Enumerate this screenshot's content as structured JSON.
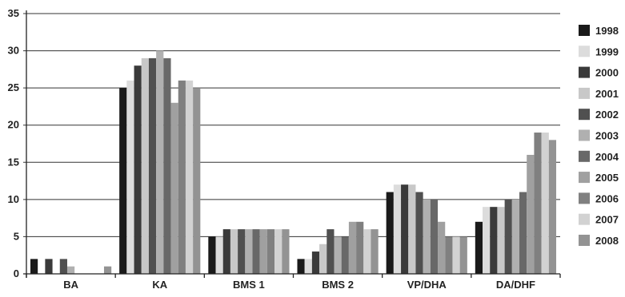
{
  "chart_data": {
    "type": "bar",
    "title": "",
    "xlabel": "",
    "ylabel": "",
    "ylim": [
      0,
      35
    ],
    "yticks": [
      0,
      5,
      10,
      15,
      20,
      25,
      30,
      35
    ],
    "grid": "horizontal",
    "legend_position": "right",
    "categories": [
      "BA",
      "KA",
      "BMS 1",
      "BMS 2",
      "VP/DHA",
      "DA/DHF"
    ],
    "series": [
      {
        "name": "1998",
        "color": "#1a1a1a",
        "values": [
          2,
          25,
          5,
          2,
          11,
          7
        ]
      },
      {
        "name": "1999",
        "color": "#dcdcdc",
        "values": [
          0,
          26,
          5,
          2,
          12,
          9
        ]
      },
      {
        "name": "2000",
        "color": "#3a3a3a",
        "values": [
          2,
          28,
          6,
          3,
          12,
          9
        ]
      },
      {
        "name": "2001",
        "color": "#c8c8c8",
        "values": [
          0,
          29,
          6,
          4,
          12,
          9
        ]
      },
      {
        "name": "2002",
        "color": "#505050",
        "values": [
          2,
          29,
          6,
          6,
          11,
          10
        ]
      },
      {
        "name": "2003",
        "color": "#b0b0b0",
        "values": [
          1,
          30,
          6,
          5,
          10,
          10
        ]
      },
      {
        "name": "2004",
        "color": "#686868",
        "values": [
          0,
          29,
          6,
          5,
          10,
          11
        ]
      },
      {
        "name": "2005",
        "color": "#a0a0a0",
        "values": [
          0,
          23,
          6,
          7,
          7,
          16
        ]
      },
      {
        "name": "2006",
        "color": "#808080",
        "values": [
          0,
          26,
          6,
          7,
          5,
          19
        ]
      },
      {
        "name": "2007",
        "color": "#d2d2d2",
        "values": [
          0,
          26,
          6,
          6,
          5,
          19
        ]
      },
      {
        "name": "2008",
        "color": "#939393",
        "values": [
          1,
          25,
          6,
          6,
          5,
          18
        ]
      }
    ]
  }
}
